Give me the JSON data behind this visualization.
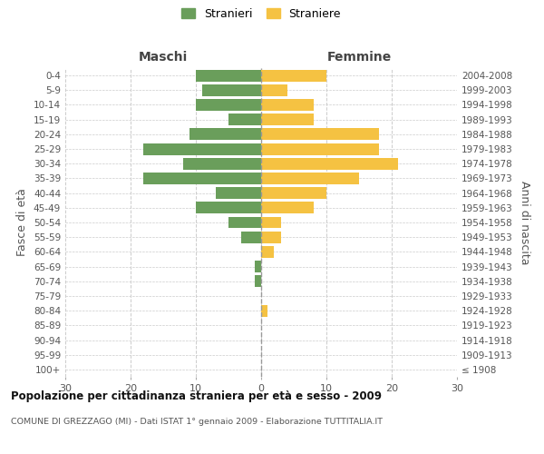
{
  "age_groups": [
    "100+",
    "95-99",
    "90-94",
    "85-89",
    "80-84",
    "75-79",
    "70-74",
    "65-69",
    "60-64",
    "55-59",
    "50-54",
    "45-49",
    "40-44",
    "35-39",
    "30-34",
    "25-29",
    "20-24",
    "15-19",
    "10-14",
    "5-9",
    "0-4"
  ],
  "birth_years": [
    "≤ 1908",
    "1909-1913",
    "1914-1918",
    "1919-1923",
    "1924-1928",
    "1929-1933",
    "1934-1938",
    "1939-1943",
    "1944-1948",
    "1949-1953",
    "1954-1958",
    "1959-1963",
    "1964-1968",
    "1969-1973",
    "1974-1978",
    "1979-1983",
    "1984-1988",
    "1989-1993",
    "1994-1998",
    "1999-2003",
    "2004-2008"
  ],
  "males": [
    0,
    0,
    0,
    0,
    0,
    0,
    1,
    1,
    0,
    3,
    5,
    10,
    7,
    18,
    12,
    18,
    11,
    5,
    10,
    9,
    10
  ],
  "females": [
    0,
    0,
    0,
    0,
    1,
    0,
    0,
    0,
    2,
    3,
    3,
    8,
    10,
    15,
    21,
    18,
    18,
    8,
    8,
    4,
    10
  ],
  "male_color": "#6a9e5b",
  "female_color": "#f5c242",
  "title": "Popolazione per cittadinanza straniera per età e sesso - 2009",
  "subtitle": "COMUNE DI GREZZAGO (MI) - Dati ISTAT 1° gennaio 2009 - Elaborazione TUTTITALIA.IT",
  "ylabel_left": "Fasce di età",
  "ylabel_right": "Anni di nascita",
  "legend_male": "Stranieri",
  "legend_female": "Straniere",
  "xlim": 30,
  "bg_color": "#ffffff",
  "grid_color": "#cccccc",
  "header_maschi": "Maschi",
  "header_femmine": "Femmine"
}
